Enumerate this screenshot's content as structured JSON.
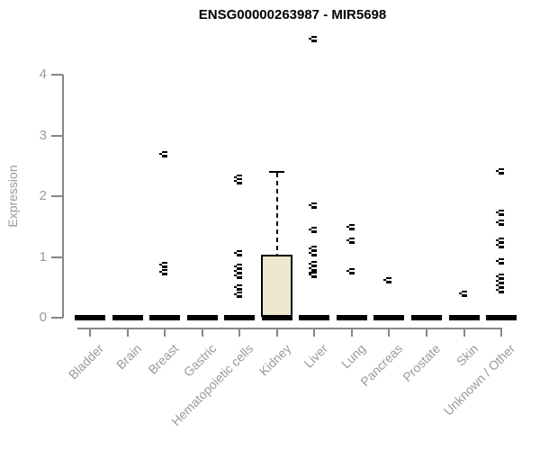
{
  "chart_data": {
    "type": "boxplot",
    "title": "ENSG00000263987 - MIR5698",
    "ylabel": "Expression",
    "xlabel": "",
    "ylim": [
      0,
      4.7
    ],
    "yticks": [
      0,
      1,
      2,
      3,
      4
    ],
    "grid": false,
    "legend": null,
    "categories": [
      "Bladder",
      "Brain",
      "Breast",
      "Gastric",
      "Hematopoietic cells",
      "Kidney",
      "Liver",
      "Lung",
      "Pancreas",
      "Prostate",
      "Skin",
      "Unknown / Other"
    ],
    "boxes": [
      {
        "category": "Bladder",
        "median": 0,
        "q1": 0,
        "q3": 0,
        "whisker_low": 0,
        "whisker_high": 0,
        "outliers": []
      },
      {
        "category": "Brain",
        "median": 0,
        "q1": 0,
        "q3": 0,
        "whisker_low": 0,
        "whisker_high": 0,
        "outliers": []
      },
      {
        "category": "Breast",
        "median": 0,
        "q1": 0,
        "q3": 0,
        "whisker_low": 0,
        "whisker_high": 0,
        "outliers": [
          2.69,
          0.87,
          0.75
        ]
      },
      {
        "category": "Gastric",
        "median": 0,
        "q1": 0,
        "q3": 0,
        "whisker_low": 0,
        "whisker_high": 0,
        "outliers": []
      },
      {
        "category": "Hematopoietic cells",
        "median": 0,
        "q1": 0,
        "q3": 0,
        "whisker_low": 0,
        "whisker_high": 0,
        "outliers": [
          2.31,
          2.25,
          1.06,
          0.84,
          0.76,
          0.69,
          0.49,
          0.38
        ]
      },
      {
        "category": "Kidney",
        "median": 0,
        "q1": 0,
        "q3": 1.03,
        "whisker_low": 0,
        "whisker_high": 2.4,
        "outliers": []
      },
      {
        "category": "Liver",
        "median": 0,
        "q1": 0,
        "q3": 0,
        "whisker_low": 0,
        "whisker_high": 0,
        "outliers": [
          4.59,
          1.84,
          1.45,
          1.13,
          1.06,
          0.88,
          0.81,
          0.74,
          0.71
        ]
      },
      {
        "category": "Lung",
        "median": 0,
        "q1": 0,
        "q3": 0,
        "whisker_low": 0,
        "whisker_high": 0,
        "outliers": [
          1.49,
          1.26,
          0.76
        ]
      },
      {
        "category": "Pancreas",
        "median": 0,
        "q1": 0,
        "q3": 0,
        "whisker_low": 0,
        "whisker_high": 0,
        "outliers": [
          0.61
        ]
      },
      {
        "category": "Prostate",
        "median": 0,
        "q1": 0,
        "q3": 0,
        "whisker_low": 0,
        "whisker_high": 0,
        "outliers": []
      },
      {
        "category": "Skin",
        "median": 0,
        "q1": 0,
        "q3": 0,
        "whisker_low": 0,
        "whisker_high": 0,
        "outliers": [
          0.4
        ]
      },
      {
        "category": "Unknown / Other",
        "median": 0,
        "q1": 0,
        "q3": 0,
        "whisker_low": 0,
        "whisker_high": 0,
        "outliers": [
          2.41,
          1.73,
          1.57,
          1.26,
          1.19,
          0.93,
          0.67,
          0.6,
          0.52,
          0.45
        ]
      }
    ],
    "colors": {
      "box_fill": "#EDE8CF",
      "box_border": "#000000",
      "median_bar": "#000000",
      "axis": "#878787",
      "tick_label": "#9a9a9a",
      "title": "#000000",
      "background": "#ffffff"
    }
  }
}
